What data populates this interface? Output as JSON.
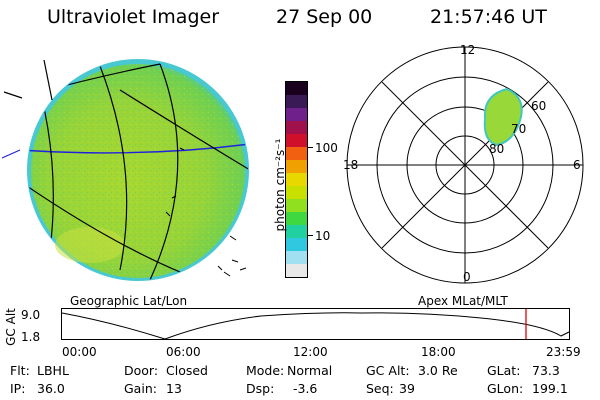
{
  "header": {
    "title": "Ultraviolet Imager",
    "date": "27 Sep 00",
    "time": "21:57:46 UT"
  },
  "image_panel": {
    "caption": "Geographic Lat/Lon"
  },
  "colorbar": {
    "unit_label": "photon cm⁻²s⁻¹",
    "ticks": [
      "100",
      "10"
    ],
    "colors": [
      "#1a001f",
      "#3a1a55",
      "#70208a",
      "#a0104a",
      "#d0102a",
      "#f06010",
      "#f0a000",
      "#e8d800",
      "#c8e000",
      "#90e020",
      "#40d840",
      "#20d0a0",
      "#30c8e0",
      "#a0e0f0",
      "#e8e8e8"
    ]
  },
  "polar_panel": {
    "caption": "Apex MLat/MLT",
    "hour_labels": {
      "top": "12",
      "bottom": "0",
      "left": "18",
      "right": "6"
    },
    "lat_labels": [
      "60",
      "70",
      "80"
    ]
  },
  "altitude_strip": {
    "axis_title": "GC Alt",
    "y_ticks": [
      "9.0",
      "1.8"
    ],
    "x_ticks": [
      "00:00",
      "06:00",
      "12:00",
      "18:00",
      "23:59"
    ],
    "marker_color": "#e00000",
    "marker_time": "21:57"
  },
  "info": {
    "flt_label": "Flt:",
    "flt_value": "LBHL",
    "ip_label": "IP:",
    "ip_value": "36.0",
    "door_label": "Door:",
    "door_value": "Closed",
    "gain_label": "Gain:",
    "gain_value": "13",
    "mode_label": "Mode:",
    "mode_value": "Normal",
    "dsp_label": "Dsp:",
    "dsp_value": "-3.6",
    "gcalt_label": "GC Alt:",
    "gcalt_value": "3.0 Re",
    "seq_label": "Seq:",
    "seq_value": "39",
    "glat_label": "GLat:",
    "glat_value": "73.3",
    "glon_label": "GLon:",
    "glon_value": "199.1"
  }
}
